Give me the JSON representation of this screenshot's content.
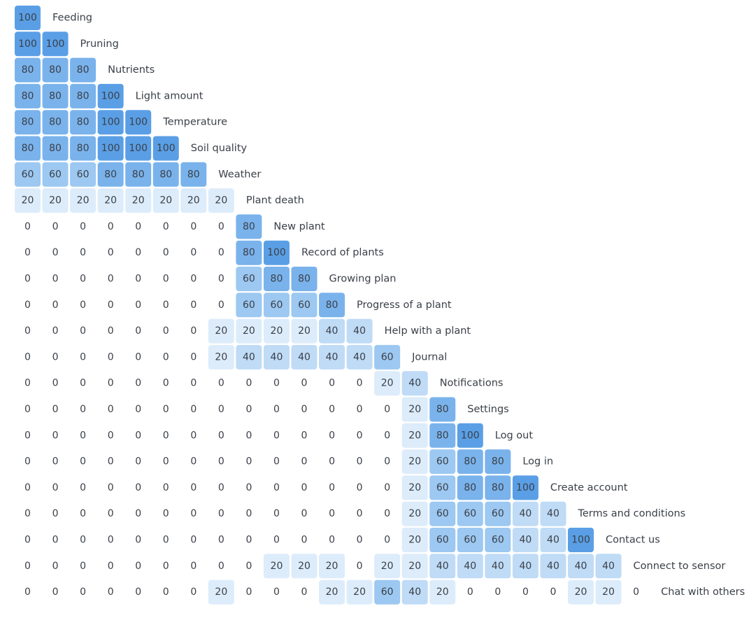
{
  "chart_data": {
    "type": "heatmap",
    "layout": "lower-triangular matrix",
    "rows": [
      "Feeding",
      "Pruning",
      "Nutrients",
      "Light amount",
      "Temperature",
      "Soil quality",
      "Weather",
      "Plant death",
      "New plant",
      "Record of plants",
      "Growing plan",
      "Progress of a plant",
      "Help with a plant",
      "Journal",
      "Notifications",
      "Settings",
      "Log out",
      "Log in",
      "Create account",
      "Terms and conditions",
      "Contact us",
      "Connect to sensor",
      "Chat with others"
    ],
    "values": [
      [
        100
      ],
      [
        100,
        100
      ],
      [
        80,
        80,
        80
      ],
      [
        80,
        80,
        80,
        100
      ],
      [
        80,
        80,
        80,
        100,
        100
      ],
      [
        80,
        80,
        80,
        100,
        100,
        100
      ],
      [
        60,
        60,
        60,
        80,
        80,
        80,
        80
      ],
      [
        20,
        20,
        20,
        20,
        20,
        20,
        20,
        20
      ],
      [
        0,
        0,
        0,
        0,
        0,
        0,
        0,
        0,
        80
      ],
      [
        0,
        0,
        0,
        0,
        0,
        0,
        0,
        0,
        80,
        100
      ],
      [
        0,
        0,
        0,
        0,
        0,
        0,
        0,
        0,
        60,
        80,
        80
      ],
      [
        0,
        0,
        0,
        0,
        0,
        0,
        0,
        0,
        60,
        60,
        60,
        80
      ],
      [
        0,
        0,
        0,
        0,
        0,
        0,
        0,
        20,
        20,
        20,
        20,
        40,
        40
      ],
      [
        0,
        0,
        0,
        0,
        0,
        0,
        0,
        20,
        40,
        40,
        40,
        40,
        40,
        60
      ],
      [
        0,
        0,
        0,
        0,
        0,
        0,
        0,
        0,
        0,
        0,
        0,
        0,
        0,
        20,
        40
      ],
      [
        0,
        0,
        0,
        0,
        0,
        0,
        0,
        0,
        0,
        0,
        0,
        0,
        0,
        0,
        20,
        80
      ],
      [
        0,
        0,
        0,
        0,
        0,
        0,
        0,
        0,
        0,
        0,
        0,
        0,
        0,
        0,
        20,
        80,
        100
      ],
      [
        0,
        0,
        0,
        0,
        0,
        0,
        0,
        0,
        0,
        0,
        0,
        0,
        0,
        0,
        20,
        60,
        80,
        80
      ],
      [
        0,
        0,
        0,
        0,
        0,
        0,
        0,
        0,
        0,
        0,
        0,
        0,
        0,
        0,
        20,
        60,
        80,
        80,
        100
      ],
      [
        0,
        0,
        0,
        0,
        0,
        0,
        0,
        0,
        0,
        0,
        0,
        0,
        0,
        0,
        20,
        60,
        60,
        60,
        40,
        40
      ],
      [
        0,
        0,
        0,
        0,
        0,
        0,
        0,
        0,
        0,
        0,
        0,
        0,
        0,
        0,
        20,
        60,
        60,
        60,
        40,
        40,
        100
      ],
      [
        0,
        0,
        0,
        0,
        0,
        0,
        0,
        0,
        0,
        20,
        20,
        20,
        0,
        20,
        20,
        40,
        40,
        40,
        40,
        40,
        40,
        40
      ],
      [
        0,
        0,
        0,
        0,
        0,
        0,
        0,
        20,
        0,
        0,
        0,
        20,
        20,
        60,
        40,
        20,
        0,
        0,
        0,
        0,
        20,
        20,
        0
      ]
    ],
    "colors": {
      "100": "#5a9fe6",
      "80": "#7ab3ec",
      "60": "#9cc8f1",
      "40": "#bfdbf6",
      "20": "#ddecfa",
      "0": "none"
    },
    "text_color": "#3a3f47",
    "grid": false,
    "legend": "none"
  }
}
